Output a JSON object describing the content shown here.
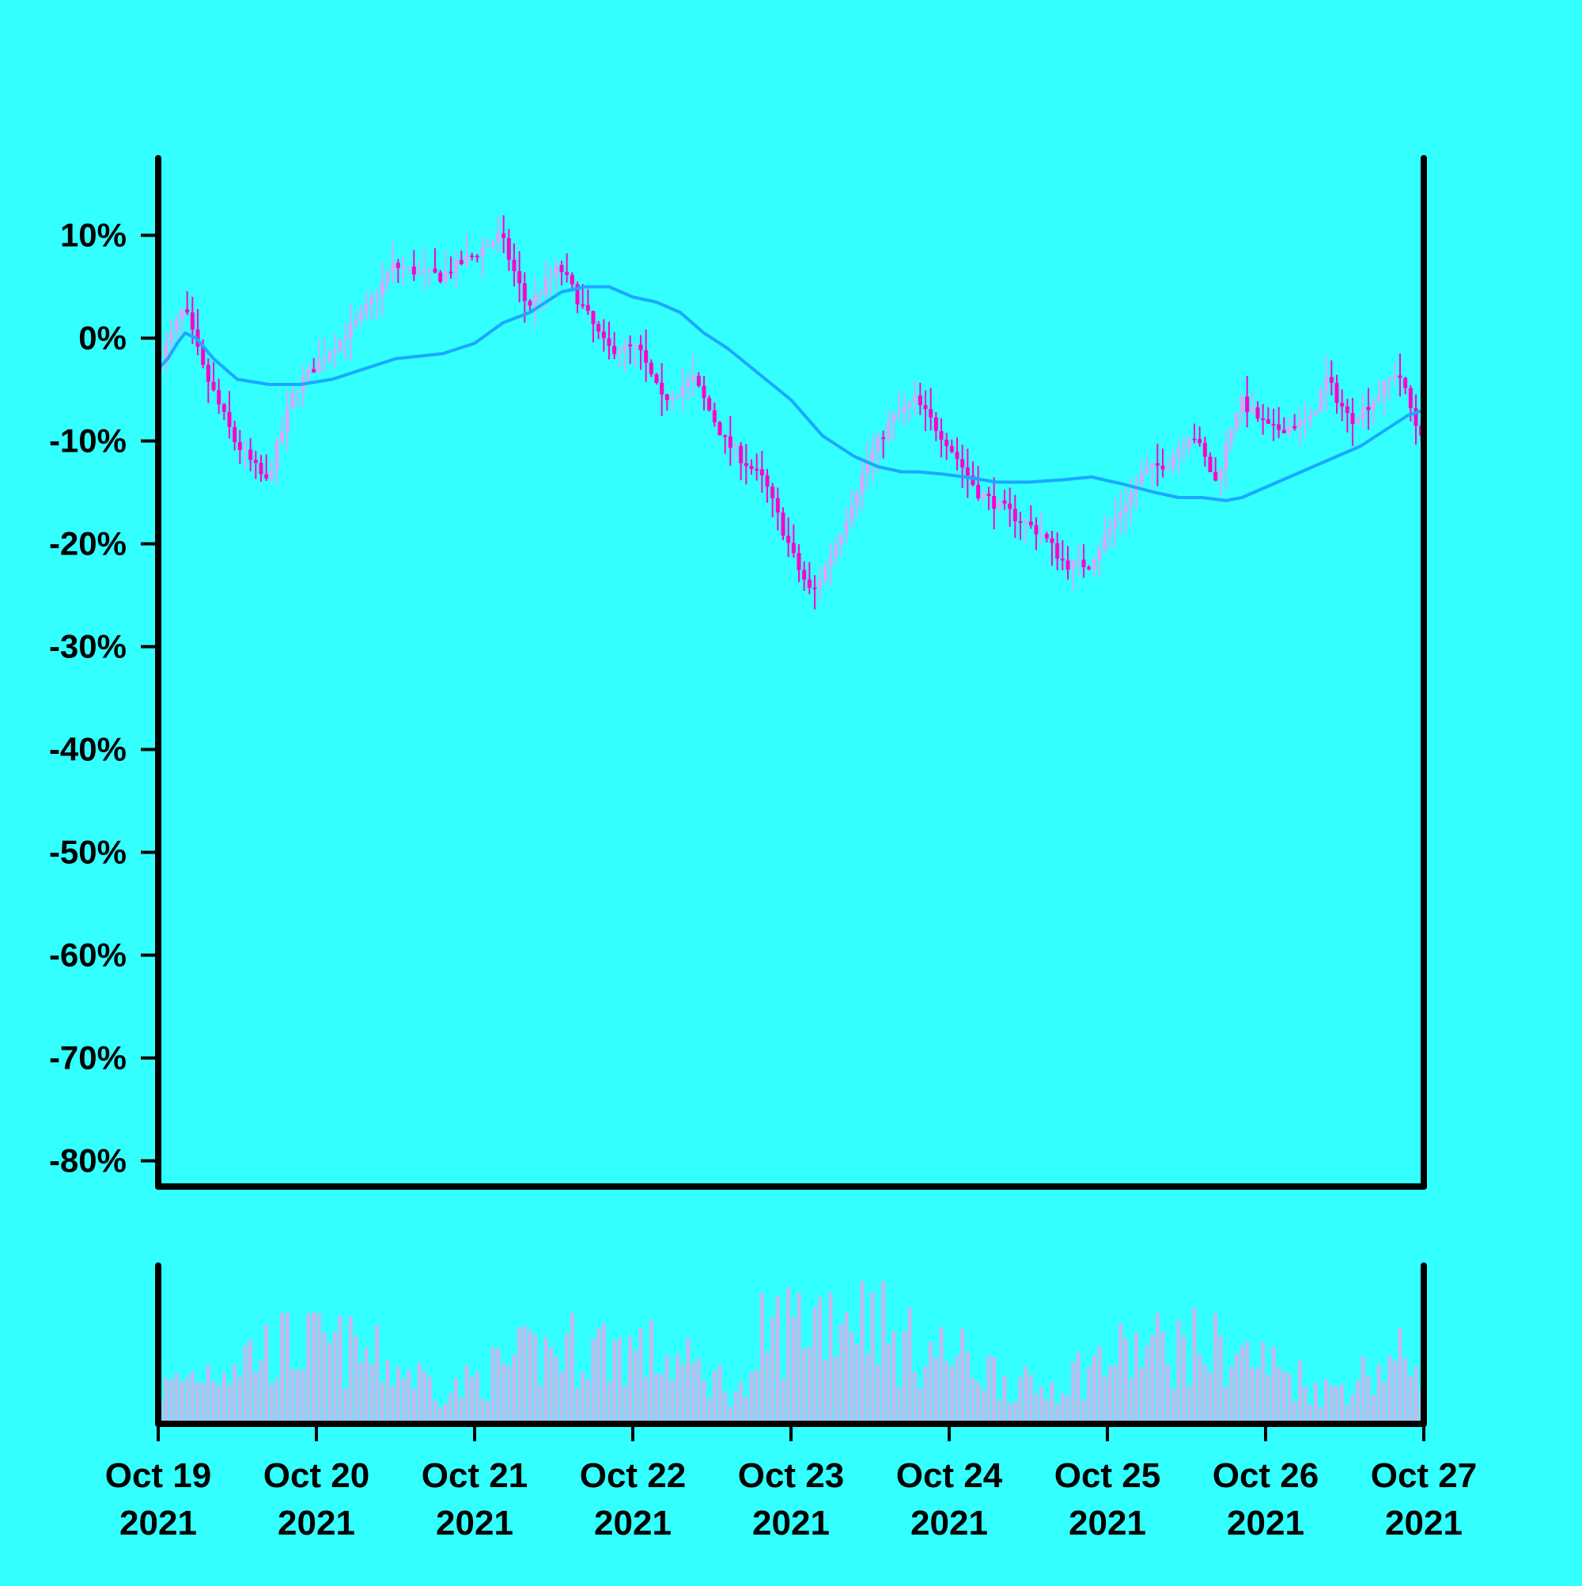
{
  "chart_data": {
    "type": "candlestick",
    "x_start": "2021-10-19",
    "x_end": "2021-10-27",
    "x_ticks": [
      {
        "date": "2021-10-19",
        "label_top": "Oct 19",
        "label_bottom": "2021"
      },
      {
        "date": "2021-10-20",
        "label_top": "Oct 20",
        "label_bottom": "2021"
      },
      {
        "date": "2021-10-21",
        "label_top": "Oct 21",
        "label_bottom": "2021"
      },
      {
        "date": "2021-10-22",
        "label_top": "Oct 22",
        "label_bottom": "2021"
      },
      {
        "date": "2021-10-23",
        "label_top": "Oct 23",
        "label_bottom": "2021"
      },
      {
        "date": "2021-10-24",
        "label_top": "Oct 24",
        "label_bottom": "2021"
      },
      {
        "date": "2021-10-25",
        "label_top": "Oct 25",
        "label_bottom": "2021"
      },
      {
        "date": "2021-10-26",
        "label_top": "Oct 26",
        "label_bottom": "2021"
      },
      {
        "date": "2021-10-27",
        "label_top": "Oct 27",
        "label_bottom": "2021"
      }
    ],
    "y_ticks": [
      10,
      0,
      -10,
      -20,
      -30,
      -40,
      -50,
      -60,
      -70,
      -80
    ],
    "y_tick_labels": [
      "10%",
      "0%",
      "-10%",
      "-20%",
      "-30%",
      "-40%",
      "-50%",
      "-60%",
      "-70%",
      "-80%"
    ],
    "ylim": [
      -82.5,
      17.5
    ],
    "price_path": [
      [
        0.0,
        -3
      ],
      [
        0.18,
        3
      ],
      [
        0.3,
        -3
      ],
      [
        0.5,
        -10
      ],
      [
        0.7,
        -14
      ],
      [
        0.88,
        -5
      ],
      [
        1.05,
        -2
      ],
      [
        1.3,
        2
      ],
      [
        1.5,
        7
      ],
      [
        1.8,
        6
      ],
      [
        2.0,
        8
      ],
      [
        2.18,
        10
      ],
      [
        2.35,
        3
      ],
      [
        2.55,
        7
      ],
      [
        2.7,
        3
      ],
      [
        2.85,
        -1
      ],
      [
        3.05,
        -1
      ],
      [
        3.2,
        -6
      ],
      [
        3.4,
        -4
      ],
      [
        3.6,
        -10
      ],
      [
        3.85,
        -14
      ],
      [
        4.05,
        -22
      ],
      [
        4.15,
        -25
      ],
      [
        4.3,
        -20
      ],
      [
        4.5,
        -12
      ],
      [
        4.65,
        -8
      ],
      [
        4.8,
        -6
      ],
      [
        5.0,
        -10
      ],
      [
        5.2,
        -15
      ],
      [
        5.4,
        -17
      ],
      [
        5.6,
        -19
      ],
      [
        5.75,
        -22
      ],
      [
        5.9,
        -22
      ],
      [
        6.05,
        -18
      ],
      [
        6.25,
        -13
      ],
      [
        6.4,
        -12
      ],
      [
        6.55,
        -9
      ],
      [
        6.7,
        -14
      ],
      [
        6.85,
        -6
      ],
      [
        7.05,
        -9
      ],
      [
        7.3,
        -8
      ],
      [
        7.4,
        -4
      ],
      [
        7.55,
        -8
      ],
      [
        7.7,
        -6
      ],
      [
        7.85,
        -3
      ],
      [
        7.98,
        -9
      ]
    ],
    "moving_average": [
      [
        0.0,
        -3
      ],
      [
        0.06,
        -2
      ],
      [
        0.12,
        -0.5
      ],
      [
        0.17,
        0.5
      ],
      [
        0.24,
        0
      ],
      [
        0.35,
        -2
      ],
      [
        0.5,
        -4
      ],
      [
        0.7,
        -4.5
      ],
      [
        0.9,
        -4.5
      ],
      [
        1.1,
        -4
      ],
      [
        1.3,
        -3
      ],
      [
        1.5,
        -2
      ],
      [
        1.8,
        -1.5
      ],
      [
        2.0,
        -0.5
      ],
      [
        2.18,
        1.5
      ],
      [
        2.35,
        2.5
      ],
      [
        2.55,
        4.5
      ],
      [
        2.7,
        5
      ],
      [
        2.85,
        5
      ],
      [
        3.0,
        4
      ],
      [
        3.15,
        3.5
      ],
      [
        3.3,
        2.5
      ],
      [
        3.45,
        0.5
      ],
      [
        3.6,
        -1
      ],
      [
        3.8,
        -3.5
      ],
      [
        4.0,
        -6
      ],
      [
        4.2,
        -9.5
      ],
      [
        4.4,
        -11.5
      ],
      [
        4.55,
        -12.5
      ],
      [
        4.7,
        -13
      ],
      [
        4.8,
        -13
      ],
      [
        4.95,
        -13.2
      ],
      [
        5.1,
        -13.5
      ],
      [
        5.3,
        -14
      ],
      [
        5.5,
        -14
      ],
      [
        5.7,
        -13.8
      ],
      [
        5.9,
        -13.5
      ],
      [
        6.1,
        -14.2
      ],
      [
        6.3,
        -15
      ],
      [
        6.45,
        -15.5
      ],
      [
        6.6,
        -15.5
      ],
      [
        6.75,
        -15.8
      ],
      [
        6.85,
        -15.5
      ],
      [
        7.0,
        -14.5
      ],
      [
        7.15,
        -13.5
      ],
      [
        7.3,
        -12.5
      ],
      [
        7.45,
        -11.5
      ],
      [
        7.6,
        -10.5
      ],
      [
        7.75,
        -9
      ],
      [
        7.9,
        -7.5
      ],
      [
        8.0,
        -7
      ]
    ],
    "volume_max": 100,
    "colors": {
      "background": "#33ffff",
      "axis": "#000000",
      "candle_up": "#d8a8f5",
      "candle_down": "#ff00cc",
      "moving_average": "#1aa8ff",
      "volume_bar": "#c5b8ec"
    },
    "grid": false,
    "legend": "none"
  }
}
